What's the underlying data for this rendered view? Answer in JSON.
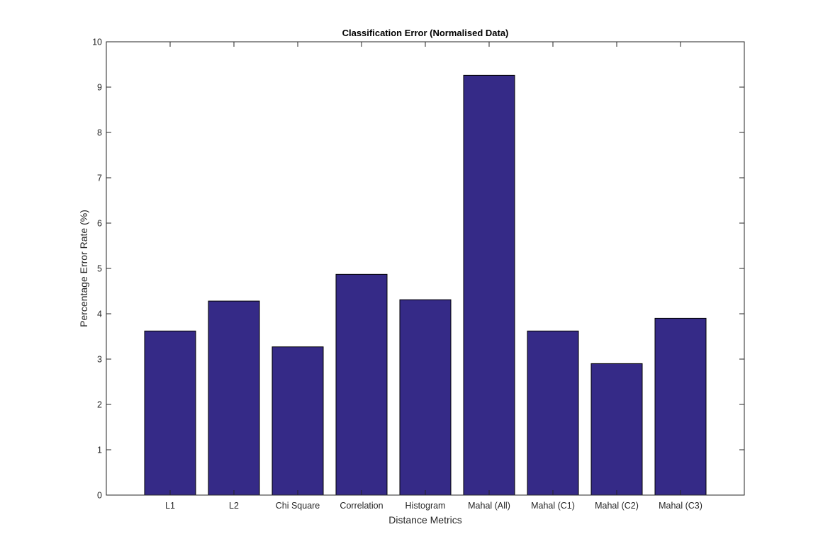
{
  "chart_data": {
    "type": "bar",
    "title": "Classification Error (Normalised Data)",
    "xlabel": "Distance Metrics",
    "ylabel": "Percentage Error Rate (%)",
    "categories": [
      "L1",
      "L2",
      "Chi Square",
      "Correlation",
      "Histogram",
      "Mahal (All)",
      "Mahal (C1)",
      "Mahal (C2)",
      "Mahal (C3)"
    ],
    "values": [
      3.62,
      4.28,
      3.27,
      4.87,
      4.31,
      9.26,
      3.62,
      2.9,
      3.9
    ],
    "ylim": [
      0,
      10
    ],
    "yticks": [
      0,
      1,
      2,
      3,
      4,
      5,
      6,
      7,
      8,
      9,
      10
    ],
    "grid": false,
    "bar_color": "#352A87",
    "bar_edge_color": "#000000"
  }
}
